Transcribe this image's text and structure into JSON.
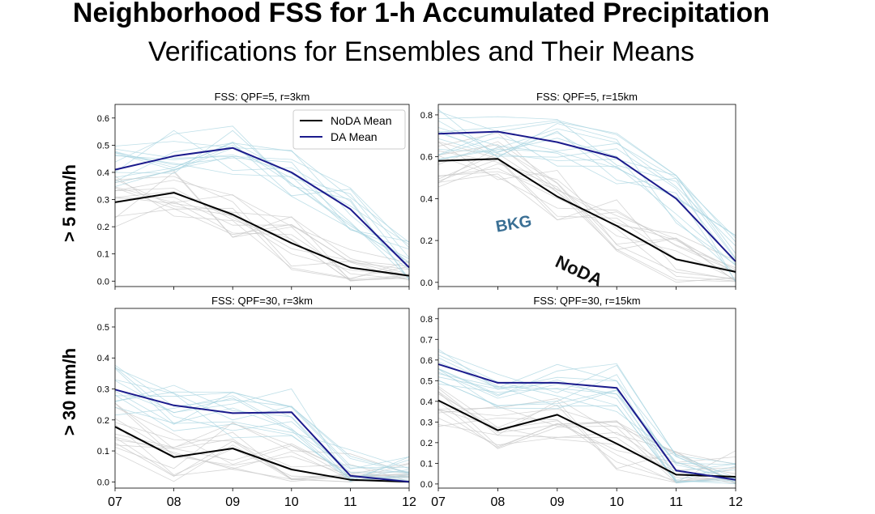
{
  "title": "Neighborhood FSS for 1-h Accumulated Precipitation",
  "subtitle": "Verifications for Ensembles and Their Means",
  "row_labels": [
    "> 5 mm/h",
    "> 30 mm/h"
  ],
  "annotations": {
    "bkg": "BKG",
    "noda": "NoDA"
  },
  "colors": {
    "noda_mean": "#000000",
    "da_mean": "#1a1a8c",
    "noda_members": "#c8c8c8",
    "da_members": "#a8d4e0",
    "bkg_annotation": "#3a6f94"
  },
  "legend": {
    "noda": "NoDA Mean",
    "da": "DA Mean"
  },
  "chart_data": [
    {
      "type": "line",
      "title": "FSS: QPF=5, r=3km",
      "categories": [
        "07",
        "08",
        "09",
        "10",
        "11",
        "12"
      ],
      "ylim": [
        -0.02,
        0.65
      ],
      "yticks": [
        0.0,
        0.1,
        0.2,
        0.3,
        0.4,
        0.5,
        0.6
      ],
      "show_xticklabels": false,
      "legend": true,
      "series": [
        {
          "name": "NoDA Mean",
          "values": [
            0.29,
            0.325,
            0.245,
            0.14,
            0.05,
            0.02
          ]
        },
        {
          "name": "DA Mean",
          "values": [
            0.41,
            0.46,
            0.49,
            0.4,
            0.265,
            0.05
          ]
        }
      ]
    },
    {
      "type": "line",
      "title": "FSS: QPF=5, r=15km",
      "categories": [
        "07",
        "08",
        "09",
        "10",
        "11",
        "12"
      ],
      "ylim": [
        -0.02,
        0.85
      ],
      "yticks": [
        0.0,
        0.2,
        0.4,
        0.6,
        0.8
      ],
      "show_xticklabels": false,
      "legend": false,
      "series": [
        {
          "name": "NoDA Mean",
          "values": [
            0.58,
            0.59,
            0.41,
            0.27,
            0.11,
            0.05
          ]
        },
        {
          "name": "DA Mean",
          "values": [
            0.71,
            0.72,
            0.67,
            0.595,
            0.4,
            0.1
          ]
        }
      ]
    },
    {
      "type": "line",
      "title": "FSS: QPF=30, r=3km",
      "categories": [
        "07",
        "08",
        "09",
        "10",
        "11",
        "12"
      ],
      "ylim": [
        -0.02,
        0.56
      ],
      "yticks": [
        0.0,
        0.1,
        0.2,
        0.3,
        0.4,
        0.5
      ],
      "show_xticklabels": true,
      "legend": false,
      "series": [
        {
          "name": "NoDA Mean",
          "values": [
            0.178,
            0.08,
            0.108,
            0.04,
            0.007,
            0.0
          ]
        },
        {
          "name": "DA Mean",
          "values": [
            0.298,
            0.247,
            0.222,
            0.225,
            0.02,
            0.0
          ]
        }
      ]
    },
    {
      "type": "line",
      "title": "FSS: QPF=30, r=15km",
      "categories": [
        "07",
        "08",
        "09",
        "10",
        "11",
        "12"
      ],
      "ylim": [
        -0.02,
        0.85
      ],
      "yticks": [
        0.0,
        0.1,
        0.2,
        0.3,
        0.4,
        0.5,
        0.6,
        0.7,
        0.8
      ],
      "show_xticklabels": true,
      "legend": false,
      "series": [
        {
          "name": "NoDA Mean",
          "values": [
            0.405,
            0.26,
            0.335,
            0.195,
            0.045,
            0.035
          ]
        },
        {
          "name": "DA Mean",
          "values": [
            0.58,
            0.49,
            0.49,
            0.465,
            0.065,
            0.02
          ]
        }
      ]
    }
  ]
}
